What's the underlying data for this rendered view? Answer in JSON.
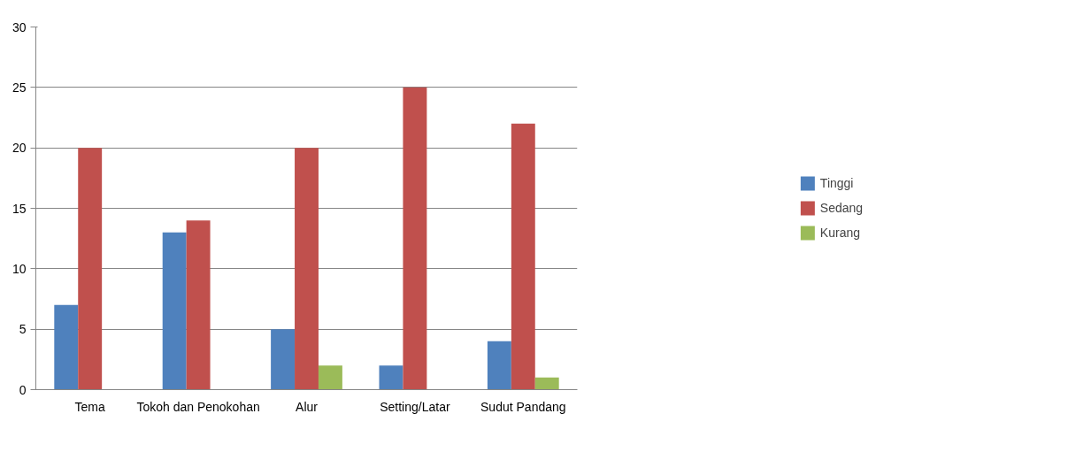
{
  "chart_data": {
    "type": "bar",
    "categories": [
      "Tema",
      "Tokoh dan Penokohan",
      "Alur",
      "Setting/Latar",
      "Sudut Pandang"
    ],
    "series": [
      {
        "name": "Tinggi",
        "color": "#4f81bd",
        "values": [
          7,
          13,
          5,
          2,
          4
        ]
      },
      {
        "name": "Sedang",
        "color": "#c0504d",
        "values": [
          20,
          14,
          20,
          25,
          22
        ]
      },
      {
        "name": "Kurang",
        "color": "#9bbb59",
        "values": [
          0,
          0,
          2,
          0,
          1
        ]
      }
    ],
    "ylim": [
      0,
      30
    ],
    "yticks": [
      0,
      5,
      10,
      15,
      20,
      25,
      30
    ],
    "grid": "y",
    "legend": "right"
  }
}
